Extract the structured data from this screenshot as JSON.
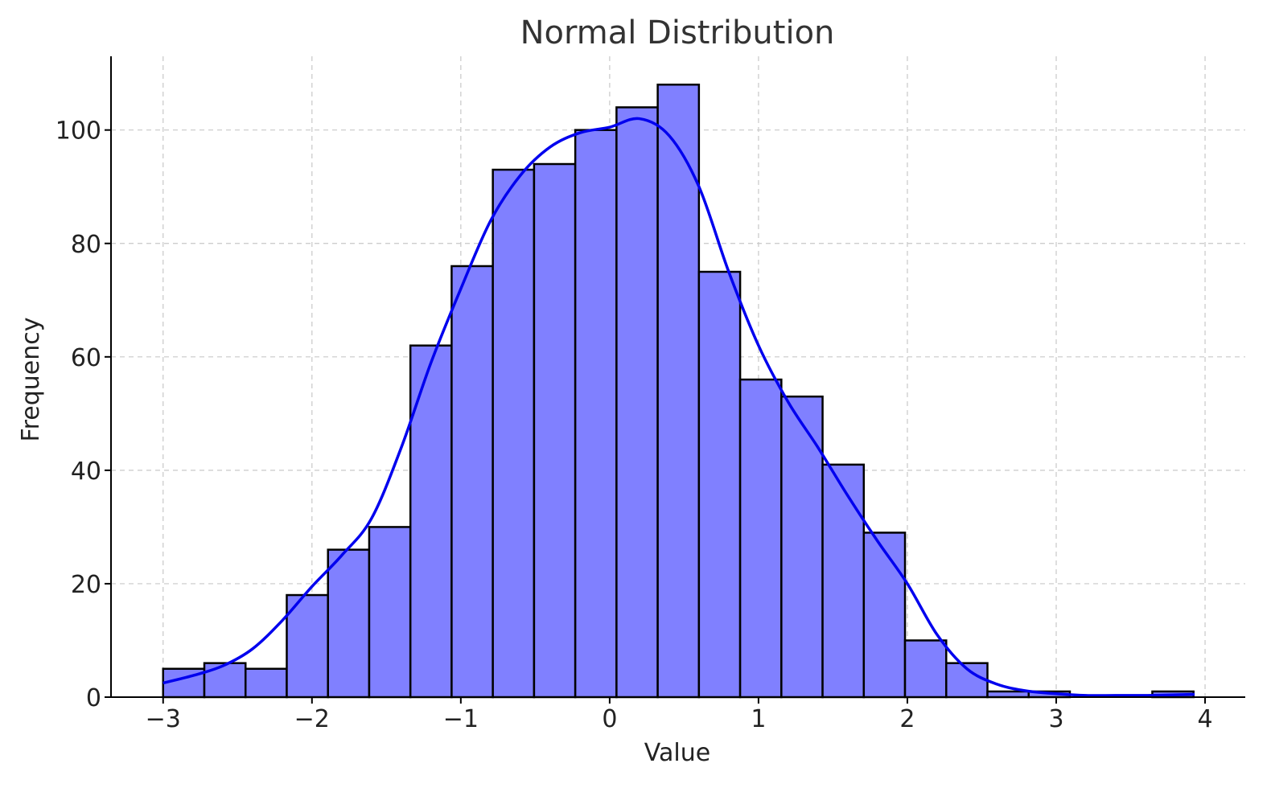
{
  "chart_data": {
    "type": "bar",
    "title": "Normal Distribution",
    "xlabel": "Value",
    "ylabel": "Frequency",
    "xlim": [
      -3.35,
      4.27
    ],
    "ylim": [
      0,
      113
    ],
    "xticks": [
      -3,
      -2,
      -1,
      0,
      1,
      2,
      3,
      4
    ],
    "xtick_labels": [
      "−3",
      "−2",
      "−1",
      "0",
      "1",
      "2",
      "3",
      "4"
    ],
    "yticks": [
      0,
      20,
      40,
      60,
      80,
      100
    ],
    "ytick_labels": [
      "0",
      "20",
      "40",
      "60",
      "80",
      "100"
    ],
    "grid": true,
    "bar_color": "#8080ff",
    "curve_color": "#0000ee",
    "bins": {
      "start": -3.0,
      "width": 0.2769,
      "counts": [
        5,
        6,
        5,
        18,
        26,
        30,
        62,
        76,
        93,
        94,
        100,
        104,
        108,
        75,
        56,
        53,
        41,
        29,
        10,
        6,
        1,
        1,
        0,
        0,
        1
      ]
    },
    "density_curve": {
      "x": [
        -3.0,
        -2.8,
        -2.6,
        -2.4,
        -2.2,
        -2.0,
        -1.8,
        -1.6,
        -1.4,
        -1.2,
        -1.0,
        -0.8,
        -0.6,
        -0.4,
        -0.2,
        0.0,
        0.2,
        0.4,
        0.6,
        0.8,
        1.0,
        1.2,
        1.4,
        1.6,
        1.8,
        2.0,
        2.2,
        2.4,
        2.6,
        2.8,
        3.0,
        3.2,
        3.4,
        3.6,
        3.8,
        3.93
      ],
      "y": [
        2.5,
        3.8,
        5.5,
        8.5,
        13.5,
        19.5,
        25,
        31.5,
        44,
        59,
        72,
        84,
        92,
        97,
        99.5,
        100.5,
        102,
        99,
        90,
        75,
        62,
        52,
        44,
        35.5,
        27.5,
        20,
        11,
        5,
        2.3,
        1.1,
        0.6,
        0.3,
        0.3,
        0.3,
        0.4,
        0.5
      ]
    }
  }
}
